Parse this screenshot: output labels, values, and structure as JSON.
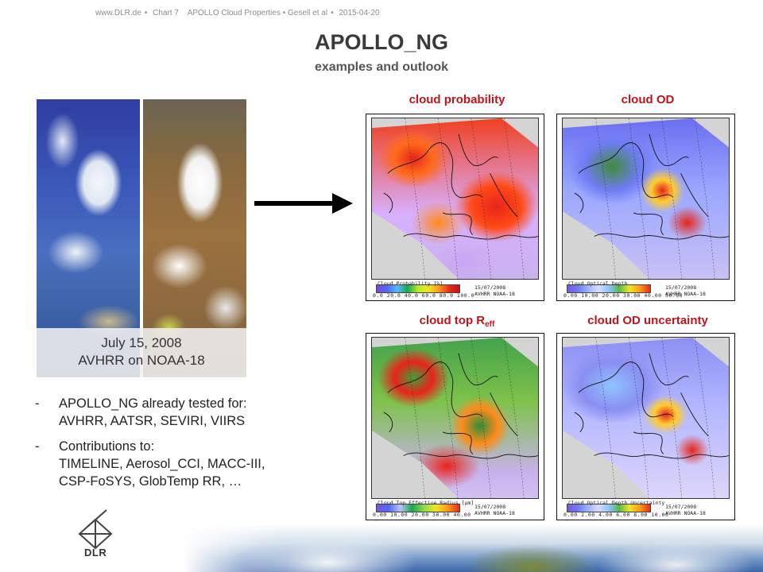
{
  "header": {
    "site": "www.DLR.de",
    "chart": "Chart 7",
    "presentation": "APOLLO Cloud Properties • Gesell et al",
    "date": "2015-04-20"
  },
  "slide": {
    "title": "APOLLO_NG",
    "subtitle": "examples and outlook"
  },
  "satellite": {
    "caption_line1": "July 15, 2008",
    "caption_line2": "AVHRR on NOAA-18"
  },
  "bullets": [
    {
      "dash": "-",
      "line1": "APOLLO_NG already tested for:",
      "line2": "AVHRR, AATSR, SEVIRI, VIIRS"
    },
    {
      "dash": "-",
      "line1": "Contributions to:",
      "line2": "TIMELINE, Aerosol_CCI, MACC-III,",
      "line3": "CSP-FoSYS, GlobTemp RR, …"
    }
  ],
  "panels": [
    {
      "title": "cloud probability",
      "colorbar_label": "Cloud Probability [%]",
      "ticks": "0.0 20.0 40.0 60.0 80.0 100.0",
      "date": "15/07/2008",
      "sat": "AVHRR NOAA-18",
      "palette": "probability"
    },
    {
      "title": "cloud OD",
      "colorbar_label": "Cloud Optical Depth",
      "ticks": "0.00 10.00 20.00 30.00 40.00 50.00",
      "date": "15/07/2008",
      "sat": "AVHRR NOAA-18",
      "palette": "od"
    },
    {
      "title_main": "cloud top R",
      "title_sub": "eff",
      "colorbar_label": "Cloud Top Effective Radius [µm]",
      "ticks": "0.00 10.00 20.00 30.00 40.00",
      "date": "15/07/2008",
      "sat": "AVHRR NOAA-18",
      "palette": "reff"
    },
    {
      "title": "cloud OD uncertainty",
      "colorbar_label": "Cloud Optical Depth Uncertainty",
      "ticks": "0.00 2.00 4.00 6.00 8.00 10.00",
      "date": "15/07/2008",
      "sat": "AVHRR NOAA-18",
      "palette": "od"
    }
  ],
  "logo": {
    "text": "DLR"
  }
}
